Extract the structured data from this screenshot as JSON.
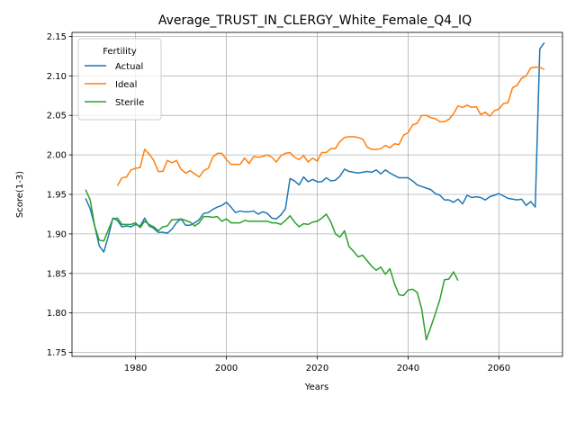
{
  "chart_data": {
    "type": "line",
    "title": "Average_TRUST_IN_CLERGY_White_Female_Q4_IQ",
    "xlabel": "Years",
    "ylabel": "Score(1-3)",
    "xlim": [
      1966,
      2074
    ],
    "ylim": [
      1.745,
      2.155
    ],
    "xticks": [
      1980,
      2000,
      2020,
      2040,
      2060
    ],
    "yticks": [
      1.75,
      1.8,
      1.85,
      1.9,
      1.95,
      2.0,
      2.05,
      2.1,
      2.15
    ],
    "grid": true,
    "legend": {
      "title": "Fertility",
      "position": "top-left"
    },
    "series": [
      {
        "name": "Actual",
        "color": "#1f77b4",
        "points": [
          [
            1969,
            1.945
          ],
          [
            1970,
            1.932
          ],
          [
            1971,
            1.91
          ],
          [
            1972,
            1.885
          ],
          [
            1973,
            1.877
          ],
          [
            1974,
            1.897
          ],
          [
            1975,
            1.92
          ],
          [
            1976,
            1.917
          ],
          [
            1977,
            1.909
          ],
          [
            1978,
            1.91
          ],
          [
            1979,
            1.909
          ],
          [
            1980,
            1.912
          ],
          [
            1981,
            1.91
          ],
          [
            1982,
            1.92
          ],
          [
            1983,
            1.91
          ],
          [
            1984,
            1.907
          ],
          [
            1985,
            1.902
          ],
          [
            1986,
            1.902
          ],
          [
            1987,
            1.901
          ],
          [
            1988,
            1.906
          ],
          [
            1989,
            1.914
          ],
          [
            1990,
            1.919
          ],
          [
            1991,
            1.911
          ],
          [
            1992,
            1.911
          ],
          [
            1993,
            1.914
          ],
          [
            1994,
            1.918
          ],
          [
            1995,
            1.926
          ],
          [
            1996,
            1.927
          ],
          [
            1997,
            1.931
          ],
          [
            1998,
            1.934
          ],
          [
            1999,
            1.936
          ],
          [
            2000,
            1.94
          ],
          [
            2001,
            1.934
          ],
          [
            2002,
            1.927
          ],
          [
            2003,
            1.929
          ],
          [
            2004,
            1.928
          ],
          [
            2005,
            1.928
          ],
          [
            2006,
            1.929
          ],
          [
            2007,
            1.925
          ],
          [
            2008,
            1.928
          ],
          [
            2009,
            1.926
          ],
          [
            2010,
            1.92
          ],
          [
            2011,
            1.919
          ],
          [
            2012,
            1.924
          ],
          [
            2013,
            1.932
          ],
          [
            2014,
            1.97
          ],
          [
            2015,
            1.967
          ],
          [
            2016,
            1.962
          ],
          [
            2017,
            1.972
          ],
          [
            2018,
            1.966
          ],
          [
            2019,
            1.969
          ],
          [
            2020,
            1.966
          ],
          [
            2021,
            1.966
          ],
          [
            2022,
            1.971
          ],
          [
            2023,
            1.967
          ],
          [
            2024,
            1.968
          ],
          [
            2025,
            1.973
          ],
          [
            2026,
            1.982
          ],
          [
            2027,
            1.979
          ],
          [
            2028,
            1.978
          ],
          [
            2029,
            1.977
          ],
          [
            2030,
            1.978
          ],
          [
            2031,
            1.979
          ],
          [
            2032,
            1.978
          ],
          [
            2033,
            1.981
          ],
          [
            2034,
            1.976
          ],
          [
            2035,
            1.981
          ],
          [
            2036,
            1.977
          ],
          [
            2037,
            1.974
          ],
          [
            2038,
            1.971
          ],
          [
            2039,
            1.971
          ],
          [
            2040,
            1.971
          ],
          [
            2041,
            1.967
          ],
          [
            2042,
            1.962
          ],
          [
            2043,
            1.96
          ],
          [
            2044,
            1.958
          ],
          [
            2045,
            1.956
          ],
          [
            2046,
            1.951
          ],
          [
            2047,
            1.949
          ],
          [
            2048,
            1.943
          ],
          [
            2049,
            1.943
          ],
          [
            2050,
            1.94
          ],
          [
            2051,
            1.944
          ],
          [
            2052,
            1.938
          ],
          [
            2053,
            1.949
          ],
          [
            2054,
            1.946
          ],
          [
            2055,
            1.947
          ],
          [
            2056,
            1.946
          ],
          [
            2057,
            1.943
          ],
          [
            2058,
            1.947
          ],
          [
            2059,
            1.949
          ],
          [
            2060,
            1.951
          ],
          [
            2061,
            1.948
          ],
          [
            2062,
            1.945
          ],
          [
            2063,
            1.944
          ],
          [
            2064,
            1.943
          ],
          [
            2065,
            1.944
          ],
          [
            2066,
            1.936
          ],
          [
            2067,
            1.941
          ],
          [
            2068,
            1.934
          ],
          [
            2069,
            2.134
          ],
          [
            2070,
            2.142
          ]
        ]
      },
      {
        "name": "Ideal",
        "color": "#ff7f0e",
        "points": [
          [
            1976,
            1.961
          ],
          [
            1977,
            1.971
          ],
          [
            1978,
            1.972
          ],
          [
            1979,
            1.981
          ],
          [
            1980,
            1.983
          ],
          [
            1981,
            1.984
          ],
          [
            1982,
            2.007
          ],
          [
            1983,
            2.001
          ],
          [
            1984,
            1.993
          ],
          [
            1985,
            1.979
          ],
          [
            1986,
            1.979
          ],
          [
            1987,
            1.993
          ],
          [
            1988,
            1.99
          ],
          [
            1989,
            1.993
          ],
          [
            1990,
            1.982
          ],
          [
            1991,
            1.977
          ],
          [
            1992,
            1.98
          ],
          [
            1993,
            1.976
          ],
          [
            1994,
            1.972
          ],
          [
            1995,
            1.98
          ],
          [
            1996,
            1.983
          ],
          [
            1997,
            1.997
          ],
          [
            1998,
            2.002
          ],
          [
            1999,
            2.002
          ],
          [
            2000,
            1.994
          ],
          [
            2001,
            1.988
          ],
          [
            2002,
            1.988
          ],
          [
            2003,
            1.988
          ],
          [
            2004,
            1.996
          ],
          [
            2005,
            1.989
          ],
          [
            2006,
            1.998
          ],
          [
            2007,
            1.997
          ],
          [
            2008,
            1.998
          ],
          [
            2009,
            2.0
          ],
          [
            2010,
            1.997
          ],
          [
            2011,
            1.991
          ],
          [
            2012,
            1.999
          ],
          [
            2013,
            2.002
          ],
          [
            2014,
            2.003
          ],
          [
            2015,
            1.997
          ],
          [
            2016,
            1.994
          ],
          [
            2017,
            1.999
          ],
          [
            2018,
            1.991
          ],
          [
            2019,
            1.996
          ],
          [
            2020,
            1.992
          ],
          [
            2021,
            2.003
          ],
          [
            2022,
            2.003
          ],
          [
            2023,
            2.008
          ],
          [
            2024,
            2.008
          ],
          [
            2025,
            2.017
          ],
          [
            2026,
            2.022
          ],
          [
            2027,
            2.023
          ],
          [
            2028,
            2.023
          ],
          [
            2029,
            2.022
          ],
          [
            2030,
            2.02
          ],
          [
            2031,
            2.01
          ],
          [
            2032,
            2.007
          ],
          [
            2033,
            2.007
          ],
          [
            2034,
            2.008
          ],
          [
            2035,
            2.012
          ],
          [
            2036,
            2.009
          ],
          [
            2037,
            2.014
          ],
          [
            2038,
            2.013
          ],
          [
            2039,
            2.025
          ],
          [
            2040,
            2.028
          ],
          [
            2041,
            2.038
          ],
          [
            2042,
            2.04
          ],
          [
            2043,
            2.05
          ],
          [
            2044,
            2.05
          ],
          [
            2045,
            2.047
          ],
          [
            2046,
            2.046
          ],
          [
            2047,
            2.042
          ],
          [
            2048,
            2.042
          ],
          [
            2049,
            2.045
          ],
          [
            2050,
            2.052
          ],
          [
            2051,
            2.062
          ],
          [
            2052,
            2.06
          ],
          [
            2053,
            2.063
          ],
          [
            2054,
            2.06
          ],
          [
            2055,
            2.061
          ],
          [
            2056,
            2.051
          ],
          [
            2057,
            2.054
          ],
          [
            2058,
            2.049
          ],
          [
            2059,
            2.056
          ],
          [
            2060,
            2.058
          ],
          [
            2061,
            2.065
          ],
          [
            2062,
            2.066
          ],
          [
            2063,
            2.085
          ],
          [
            2064,
            2.088
          ],
          [
            2065,
            2.097
          ],
          [
            2066,
            2.1
          ],
          [
            2067,
            2.11
          ],
          [
            2068,
            2.111
          ],
          [
            2069,
            2.111
          ],
          [
            2070,
            2.108
          ]
        ]
      },
      {
        "name": "Sterile",
        "color": "#2ca02c",
        "points": [
          [
            1969,
            1.956
          ],
          [
            1970,
            1.943
          ],
          [
            1971,
            1.91
          ],
          [
            1972,
            1.892
          ],
          [
            1973,
            1.891
          ],
          [
            1974,
            1.905
          ],
          [
            1975,
            1.919
          ],
          [
            1976,
            1.92
          ],
          [
            1977,
            1.912
          ],
          [
            1978,
            1.912
          ],
          [
            1979,
            1.912
          ],
          [
            1980,
            1.914
          ],
          [
            1981,
            1.908
          ],
          [
            1982,
            1.916
          ],
          [
            1983,
            1.912
          ],
          [
            1984,
            1.909
          ],
          [
            1985,
            1.904
          ],
          [
            1986,
            1.909
          ],
          [
            1987,
            1.91
          ],
          [
            1988,
            1.918
          ],
          [
            1989,
            1.918
          ],
          [
            1990,
            1.919
          ],
          [
            1991,
            1.917
          ],
          [
            1992,
            1.915
          ],
          [
            1993,
            1.91
          ],
          [
            1994,
            1.914
          ],
          [
            1995,
            1.922
          ],
          [
            1996,
            1.922
          ],
          [
            1997,
            1.921
          ],
          [
            1998,
            1.922
          ],
          [
            1999,
            1.916
          ],
          [
            2000,
            1.919
          ],
          [
            2001,
            1.914
          ],
          [
            2002,
            1.914
          ],
          [
            2003,
            1.914
          ],
          [
            2004,
            1.917
          ],
          [
            2005,
            1.916
          ],
          [
            2006,
            1.916
          ],
          [
            2007,
            1.916
          ],
          [
            2008,
            1.916
          ],
          [
            2009,
            1.916
          ],
          [
            2010,
            1.914
          ],
          [
            2011,
            1.914
          ],
          [
            2012,
            1.912
          ],
          [
            2013,
            1.917
          ],
          [
            2014,
            1.923
          ],
          [
            2015,
            1.915
          ],
          [
            2016,
            1.909
          ],
          [
            2017,
            1.913
          ],
          [
            2018,
            1.912
          ],
          [
            2019,
            1.915
          ],
          [
            2020,
            1.916
          ],
          [
            2021,
            1.92
          ],
          [
            2022,
            1.925
          ],
          [
            2023,
            1.915
          ],
          [
            2024,
            1.9
          ],
          [
            2025,
            1.896
          ],
          [
            2026,
            1.904
          ],
          [
            2027,
            1.884
          ],
          [
            2028,
            1.878
          ],
          [
            2029,
            1.871
          ],
          [
            2030,
            1.873
          ],
          [
            2031,
            1.866
          ],
          [
            2032,
            1.859
          ],
          [
            2033,
            1.854
          ],
          [
            2034,
            1.858
          ],
          [
            2035,
            1.849
          ],
          [
            2036,
            1.856
          ],
          [
            2037,
            1.837
          ],
          [
            2038,
            1.823
          ],
          [
            2039,
            1.822
          ],
          [
            2040,
            1.829
          ],
          [
            2041,
            1.83
          ],
          [
            2042,
            1.826
          ],
          [
            2043,
            1.805
          ],
          [
            2044,
            1.766
          ],
          [
            2045,
            1.782
          ],
          [
            2046,
            1.799
          ],
          [
            2047,
            1.817
          ],
          [
            2048,
            1.842
          ],
          [
            2049,
            1.843
          ],
          [
            2050,
            1.852
          ],
          [
            2051,
            1.841
          ]
        ]
      }
    ]
  }
}
